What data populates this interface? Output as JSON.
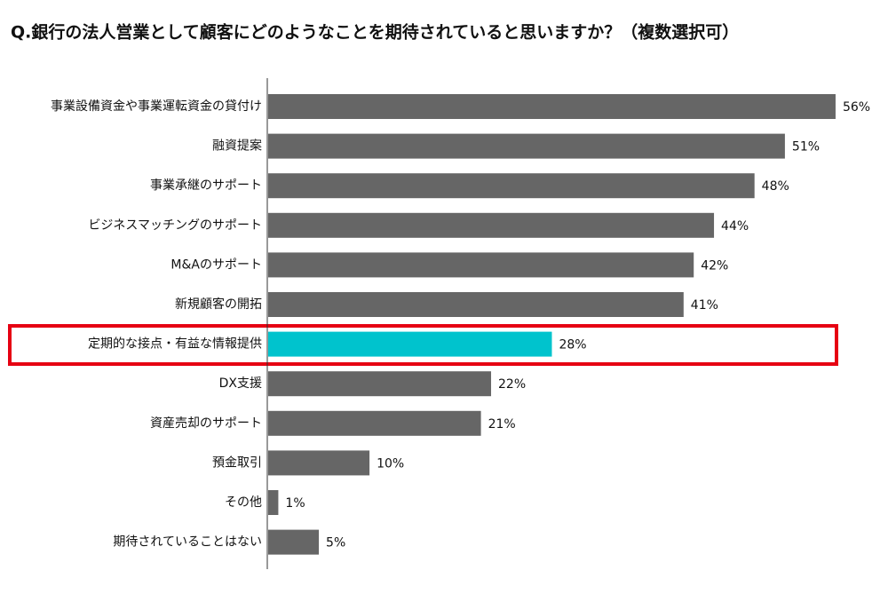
{
  "chart_data": {
    "type": "barh",
    "title": "Q.銀行の法人営業として顧客にどのようなことを期待されていると思いますか？（複数選択可）",
    "categories": [
      "事業設備資金や事業運転資金の貸付け",
      "融資提案",
      "事業承継のサポート",
      "ビジネスマッチングのサポート",
      "M&Aのサポート",
      "新規顧客の開拓",
      "定期的な接点・有益な情報提供",
      "DX支援",
      "資産売却のサポート",
      "預金取引",
      "その他",
      "期待されていることはない"
    ],
    "values": [
      56,
      51,
      48,
      44,
      42,
      41,
      28,
      22,
      21,
      10,
      1,
      5
    ],
    "value_labels": [
      "56%",
      "51%",
      "48%",
      "44%",
      "42%",
      "41%",
      "28%",
      "22%",
      "21%",
      "10%",
      "1%",
      "5%"
    ],
    "colors": [
      "#666666",
      "#666666",
      "#666666",
      "#666666",
      "#666666",
      "#666666",
      "#00c3cd",
      "#666666",
      "#666666",
      "#666666",
      "#666666",
      "#666666"
    ]
  }
}
